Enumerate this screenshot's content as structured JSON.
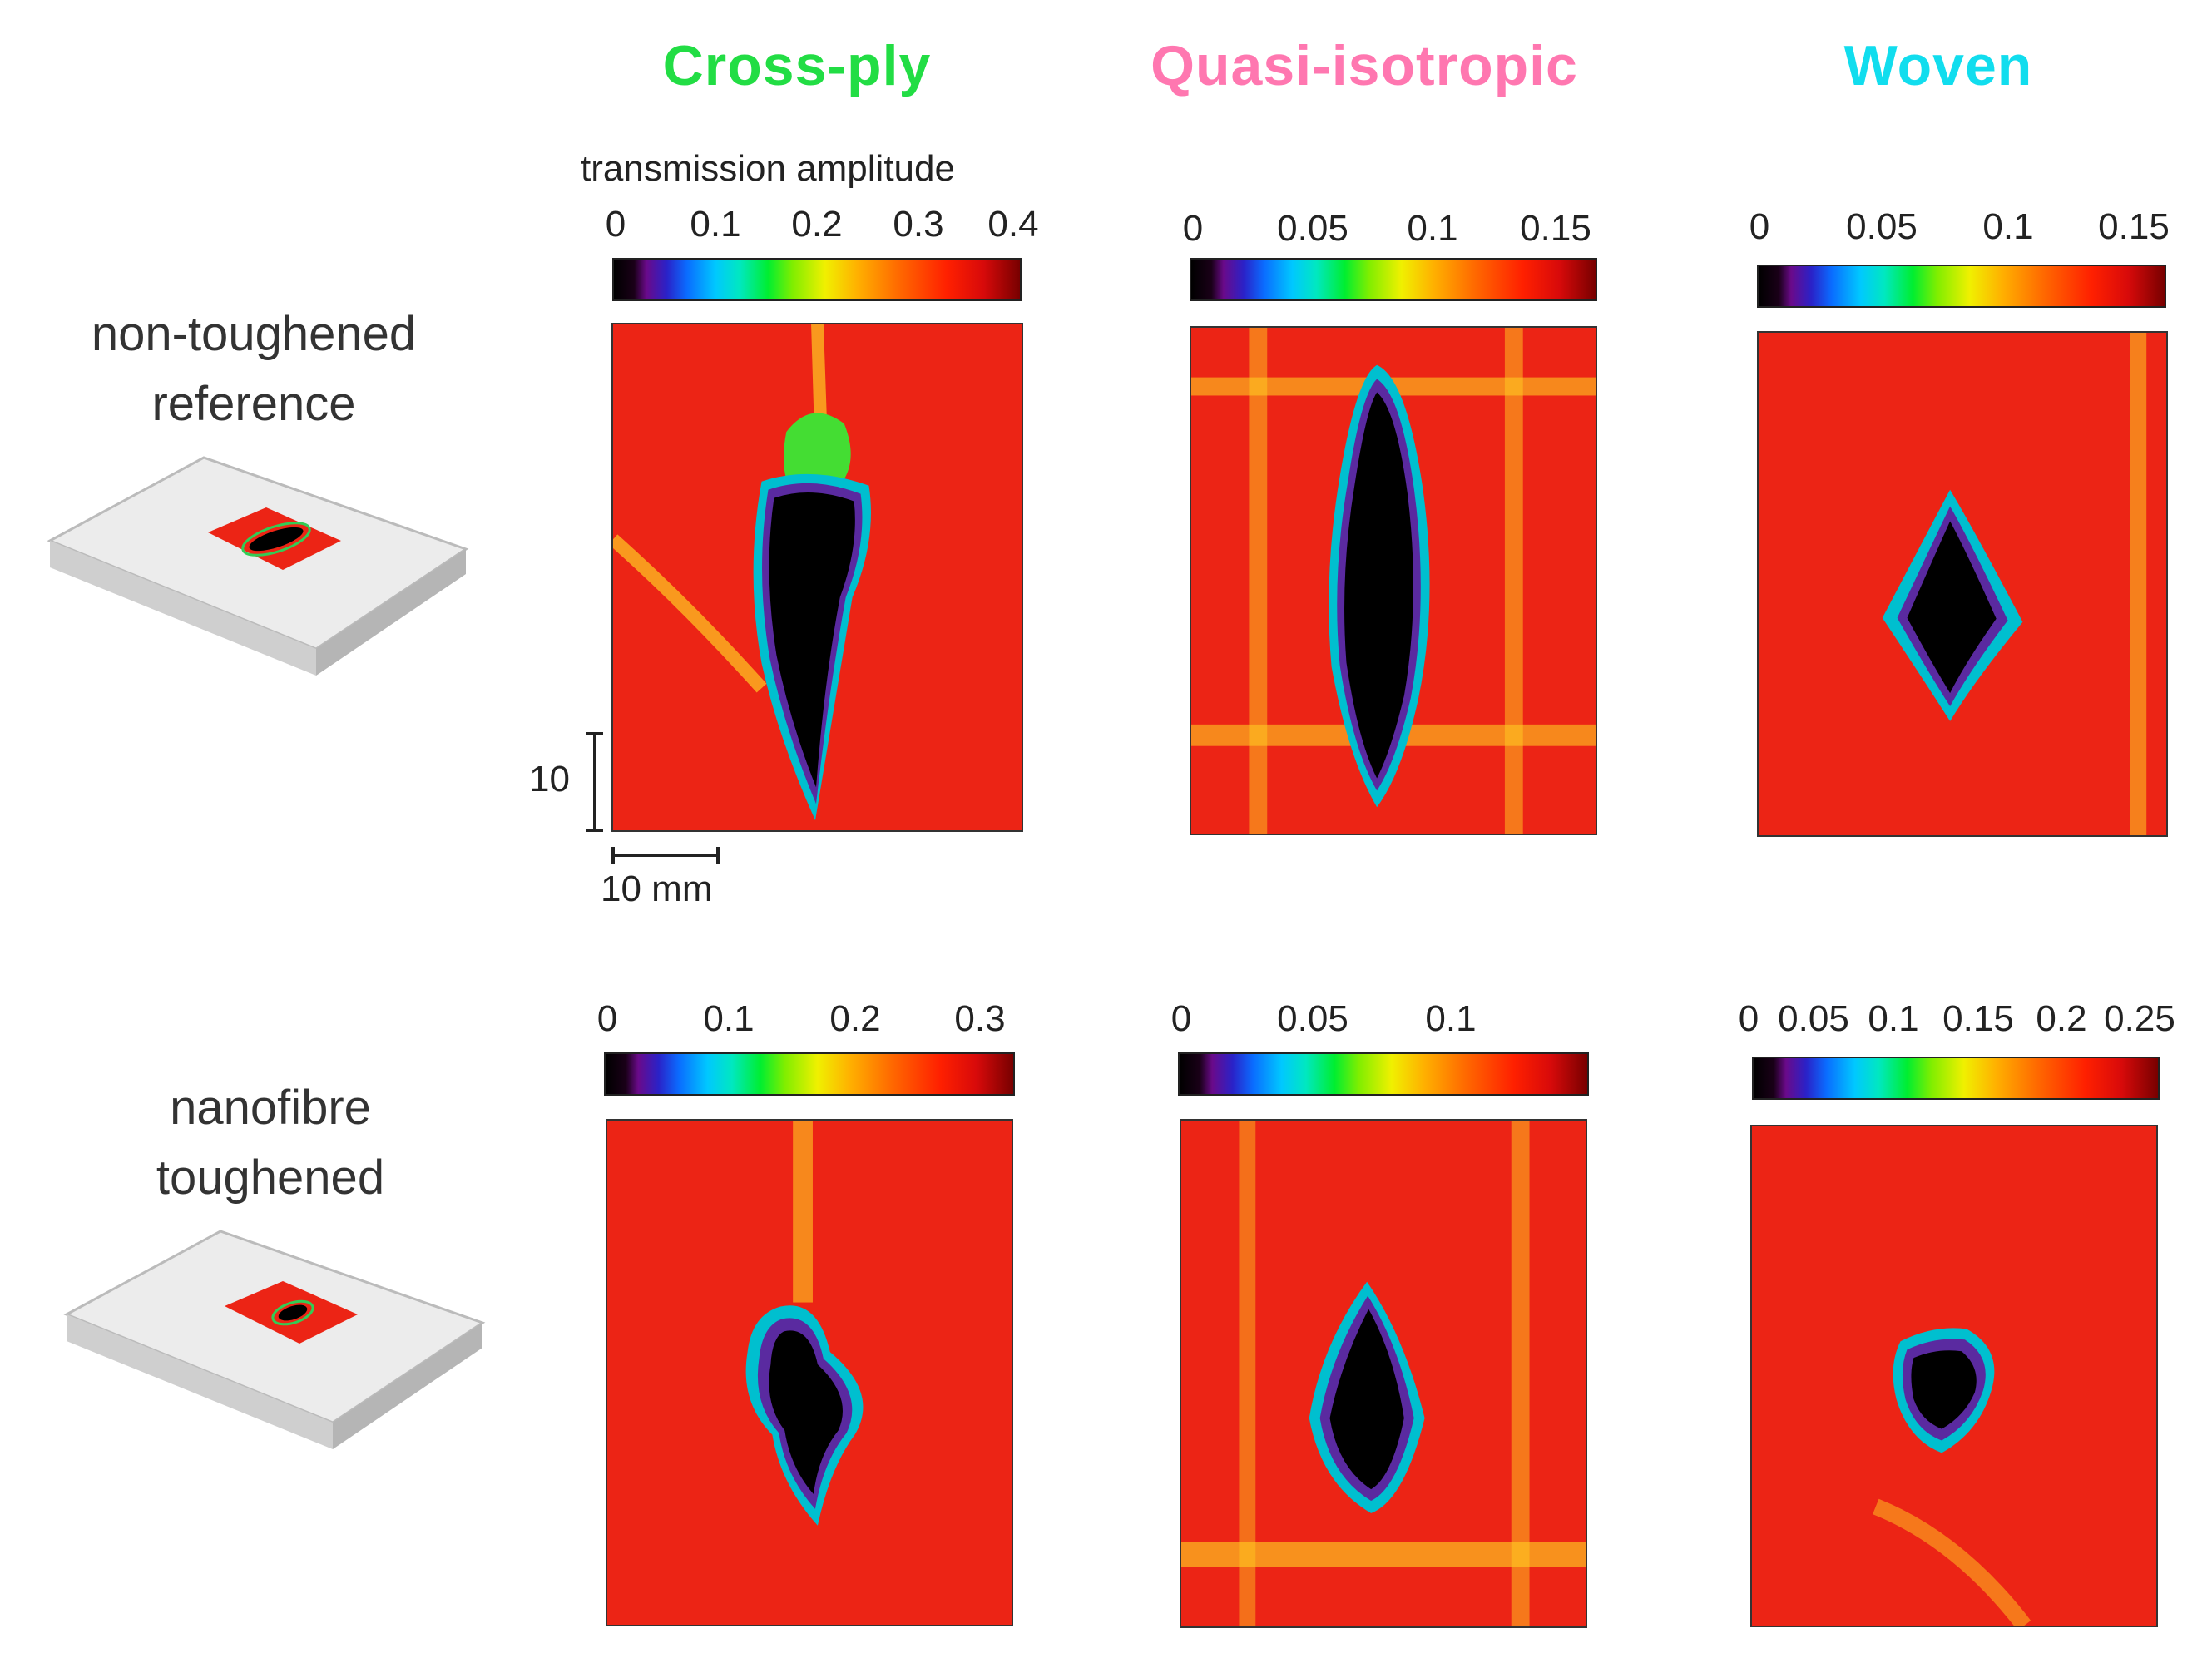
{
  "figure": {
    "columns": [
      {
        "title": "Cross-ply",
        "color": "#22dd44"
      },
      {
        "title": "Quasi-isotropic",
        "color": "#ff77b0"
      },
      {
        "title": "Woven",
        "color": "#11ddee"
      }
    ],
    "rows": [
      {
        "label_line1": "non-toughened",
        "label_line2": "reference"
      },
      {
        "label_line1": "nanofibre",
        "label_line2": "toughened"
      }
    ],
    "colorbar_title": "transmission amplitude",
    "scale_vertical": "10",
    "scale_horizontal": "10 mm",
    "colorbars": {
      "r1c1": [
        "0",
        "0.1",
        "0.2",
        "0.3",
        "0.4"
      ],
      "r1c2": [
        "0",
        "0.05",
        "0.1",
        "0.15"
      ],
      "r1c3": [
        "0",
        "0.05",
        "0.1",
        "0.15"
      ],
      "r2c1": [
        "0",
        "0.1",
        "0.2",
        "0.3"
      ],
      "r2c2": [
        "0",
        "0.05",
        "0.1"
      ],
      "r2c3": [
        "0",
        "0.05",
        "0.1",
        "0.15",
        "0.2",
        "0.25"
      ]
    },
    "colors": {
      "background_red": "#ec2415",
      "damage_core": "#000000"
    }
  }
}
